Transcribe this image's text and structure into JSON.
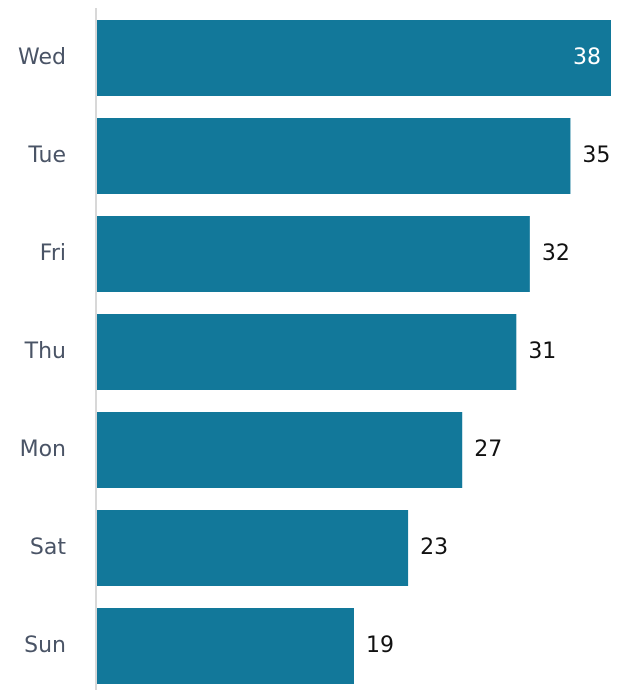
{
  "chart_data": {
    "type": "bar",
    "orientation": "horizontal",
    "categories": [
      "Wed",
      "Tue",
      "Fri",
      "Thu",
      "Mon",
      "Sat",
      "Sun"
    ],
    "values": [
      38,
      35,
      32,
      31,
      27,
      23,
      19
    ],
    "color": "#12789a"
  }
}
